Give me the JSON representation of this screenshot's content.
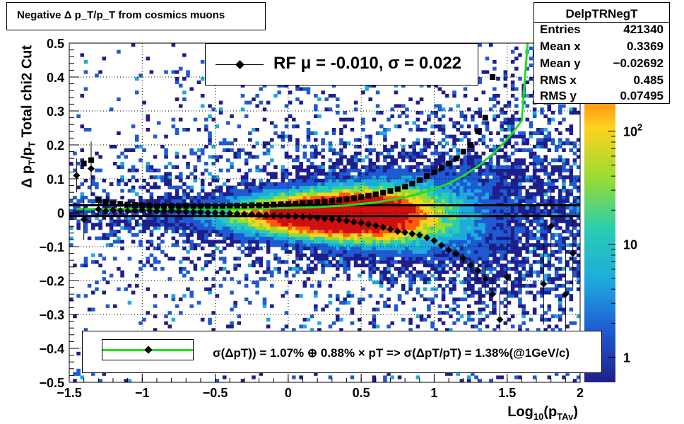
{
  "title": "Negative Δ p_T/p_T from cosmics muons",
  "stats": {
    "name": "DelpTRNegT",
    "rows": [
      {
        "key": "Entries",
        "value": "421340"
      },
      {
        "key": "Mean x",
        "value": "0.3369"
      },
      {
        "key": "Mean y",
        "value": "−0.02692"
      },
      {
        "key": "RMS x",
        "value": "0.485"
      },
      {
        "key": "RMS y",
        "value": "0.07495"
      }
    ]
  },
  "legend_top": "RF μ = -0.010, σ =   0.022",
  "legend_bottom": "σ(ΔpT)) =  1.07% ⊕  0.88% × pT => σ(ΔpT/pT) =  1.38%(@1GeV/c)",
  "colors": {
    "fit_line": "#22dd22",
    "markers": "#000000"
  },
  "chart_data": {
    "type": "heatmap",
    "title": "Negative Δ p_T/p_T from cosmics muons",
    "xlabel": "Log_10(p_TAv)",
    "ylabel": "Δ p_T/p_T Total chi2 Cut",
    "xlim": [
      -1.5,
      2
    ],
    "ylim": [
      -0.5,
      0.5
    ],
    "x_ticks": [
      "−1.5",
      "−1",
      "−0.5",
      "0",
      "0.5",
      "1",
      "1.5",
      "2"
    ],
    "y_ticks": [
      "−0.5",
      "−0.4",
      "−0.3",
      "−0.2",
      "−0.1",
      "0",
      "0.1",
      "0.2",
      "0.3",
      "0.4",
      "0.5"
    ],
    "z_scale": "log",
    "z_ticks": [
      "1",
      "10",
      "10^2"
    ],
    "grid": true,
    "series": [
      {
        "name": "RF",
        "type": "scatter",
        "marker": "diamond",
        "x": [
          -1.45,
          -1.4,
          -1.35,
          -1.3,
          -1.25,
          -1.2,
          -1.15,
          -1.1,
          -1.05,
          -1.0,
          -0.95,
          -0.9,
          -0.85,
          -0.8,
          -0.75,
          -0.7,
          -0.65,
          -0.6,
          -0.55,
          -0.5,
          -0.45,
          -0.4,
          -0.35,
          -0.3,
          -0.25,
          -0.2,
          -0.15,
          -0.1,
          -0.05,
          0.0,
          0.05,
          0.1,
          0.15,
          0.2,
          0.25,
          0.3,
          0.35,
          0.4,
          0.45,
          0.5,
          0.55,
          0.6,
          0.65,
          0.7,
          0.75,
          0.8,
          0.85,
          0.9,
          0.95,
          1.0,
          1.05,
          1.1,
          1.15,
          1.2,
          1.25,
          1.3,
          1.35,
          1.4,
          1.45,
          1.5,
          1.55,
          1.6,
          1.65,
          1.7,
          1.75,
          1.8,
          1.85,
          1.9,
          1.95
        ],
        "y": [
          0.11,
          -0.02,
          0.13,
          0.01,
          0.005,
          0.008,
          0.006,
          0.005,
          0.007,
          0.008,
          0.006,
          0.005,
          0.005,
          0.006,
          0.004,
          0.003,
          0.002,
          0.001,
          0.0,
          0.0,
          -0.001,
          -0.002,
          -0.003,
          -0.004,
          -0.005,
          -0.006,
          -0.007,
          -0.008,
          -0.009,
          -0.01,
          -0.011,
          -0.012,
          -0.013,
          -0.015,
          -0.017,
          -0.019,
          -0.021,
          -0.024,
          -0.027,
          -0.03,
          -0.034,
          -0.038,
          -0.043,
          -0.049,
          -0.055,
          -0.058,
          -0.062,
          -0.066,
          -0.074,
          -0.082,
          -0.096,
          -0.11,
          -0.12,
          -0.135,
          -0.155,
          -0.17,
          -0.195,
          -0.24,
          -0.315,
          -0.19,
          null,
          null,
          null,
          null,
          -0.21,
          -0.04,
          null,
          -0.24,
          -0.12
        ],
        "yerr": [
          0.05,
          0.06,
          0.08,
          0.02,
          0.01,
          0.01,
          0.01,
          0.01,
          0.01,
          0.008,
          0.007,
          0.006,
          0.005,
          0.005,
          0.004,
          0.004,
          0.003,
          0.003,
          0.003,
          0.003,
          0.003,
          0.003,
          0.003,
          0.003,
          0.003,
          0.003,
          0.003,
          0.003,
          0.003,
          0.003,
          0.003,
          0.003,
          0.003,
          0.003,
          0.003,
          0.003,
          0.004,
          0.004,
          0.004,
          0.004,
          0.005,
          0.005,
          0.005,
          0.006,
          0.006,
          0.006,
          0.007,
          0.008,
          0.008,
          0.009,
          0.01,
          0.01,
          0.012,
          0.015,
          0.02,
          0.03,
          0.04,
          0.06,
          0.08,
          0.1,
          null,
          null,
          null,
          null,
          0.12,
          0.1,
          null,
          0.15,
          0.1
        ]
      },
      {
        "name": "RMS",
        "type": "scatter",
        "marker": "square",
        "x": [
          -1.45,
          -1.4,
          -1.35,
          -1.3,
          -1.25,
          -1.2,
          -1.15,
          -1.1,
          -1.05,
          -1.0,
          -0.95,
          -0.9,
          -0.85,
          -0.8,
          -0.75,
          -0.7,
          -0.65,
          -0.6,
          -0.55,
          -0.5,
          -0.45,
          -0.4,
          -0.35,
          -0.3,
          -0.25,
          -0.2,
          -0.15,
          -0.1,
          -0.05,
          0.0,
          0.05,
          0.1,
          0.15,
          0.2,
          0.25,
          0.3,
          0.35,
          0.4,
          0.45,
          0.5,
          0.55,
          0.6,
          0.65,
          0.7,
          0.75,
          0.8,
          0.85,
          0.9,
          0.95,
          1.0,
          1.05,
          1.1,
          1.15,
          1.2,
          1.25,
          1.3,
          1.35,
          1.4,
          1.45
        ],
        "y": [
          null,
          0.145,
          0.155,
          0.038,
          0.032,
          0.028,
          0.026,
          0.024,
          0.023,
          0.022,
          0.021,
          0.02,
          0.02,
          0.02,
          0.02,
          0.02,
          0.02,
          0.02,
          0.02,
          0.02,
          0.02,
          0.021,
          0.021,
          0.021,
          0.022,
          0.022,
          0.023,
          0.024,
          0.025,
          0.026,
          0.027,
          0.028,
          0.029,
          0.031,
          0.033,
          0.035,
          0.037,
          0.04,
          0.043,
          0.046,
          0.05,
          0.054,
          0.059,
          0.064,
          0.07,
          0.077,
          0.086,
          0.096,
          0.108,
          0.12,
          0.132,
          0.145,
          0.16,
          0.18,
          0.2,
          0.24,
          0.28,
          0.4,
          null
        ]
      },
      {
        "name": "fit",
        "type": "line",
        "x": [
          -1.45,
          -1.2,
          -1.0,
          -0.8,
          -0.6,
          -0.4,
          -0.2,
          0.0,
          0.2,
          0.4,
          0.6,
          0.8,
          1.0,
          1.1,
          1.2,
          1.3,
          1.4,
          1.5,
          1.55,
          1.6,
          1.64
        ],
        "y": [
          0.0108,
          0.0108,
          0.0109,
          0.011,
          0.0112,
          0.0116,
          0.0123,
          0.0138,
          0.0166,
          0.0216,
          0.0302,
          0.0447,
          0.0687,
          0.0865,
          0.1088,
          0.1371,
          0.1722,
          0.2164,
          0.2425,
          0.2717,
          0.5
        ]
      }
    ],
    "reference_lines": [
      {
        "y": 0.022
      },
      {
        "y": -0.01
      }
    ]
  }
}
